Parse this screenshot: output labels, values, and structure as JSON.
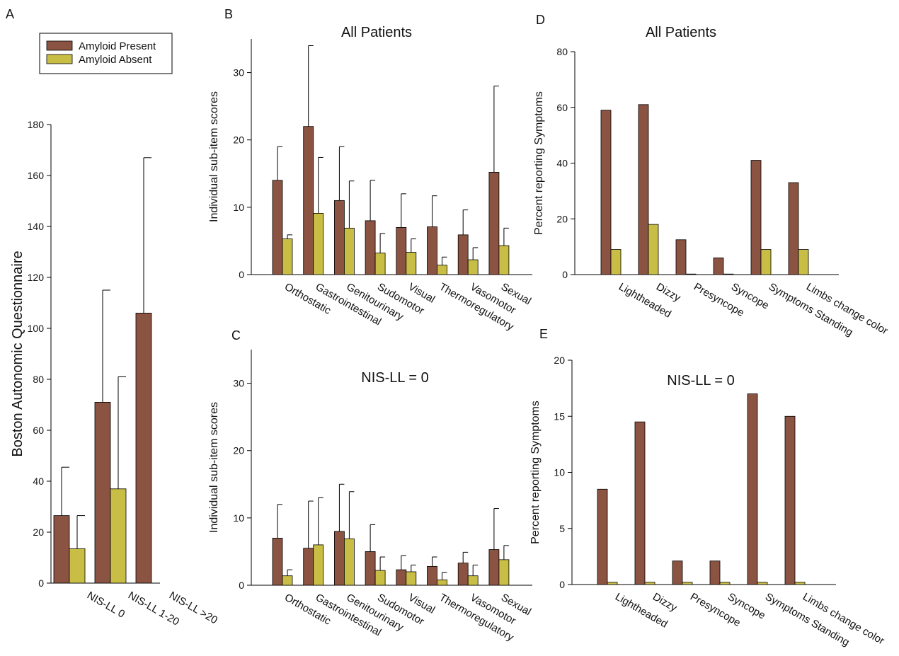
{
  "colors": {
    "present": "#8B5342",
    "absent": "#C9BE45",
    "err": "#000000"
  },
  "legend": {
    "present": "Amyloid Present",
    "absent": "Amyloid Absent"
  },
  "chart_data": [
    {
      "id": "A",
      "panel_label": "A",
      "type": "bar",
      "title": "",
      "ylabel": "Boston Autonomic Questionnaire",
      "ylim": [
        0,
        180
      ],
      "yticks": [
        0,
        20,
        40,
        60,
        80,
        100,
        120,
        140,
        160,
        180
      ],
      "categories": [
        "NIS-LL 0",
        "NIS-LL 1-20",
        "NIS-LL >20"
      ],
      "series": [
        {
          "name": "Amyloid Present",
          "values": [
            26.5,
            71,
            106
          ],
          "err_upper": [
            45.5,
            115,
            167
          ]
        },
        {
          "name": "Amyloid Absent",
          "values": [
            13.5,
            37,
            null
          ],
          "err_upper": [
            26.5,
            81,
            null
          ]
        }
      ]
    },
    {
      "id": "B",
      "panel_label": "B",
      "type": "bar",
      "title": "All Patients",
      "ylabel": "Individual sub-item scores",
      "ylim": [
        0,
        35
      ],
      "yticks": [
        0,
        10,
        20,
        30
      ],
      "categories": [
        "Orthostatic",
        "Gastrointestinal",
        "Genitourinary",
        "Sudomotor",
        "Visual",
        "Thermoregulatory",
        "Vasomotor",
        "Sexual"
      ],
      "series": [
        {
          "name": "Amyloid Present",
          "values": [
            14,
            22,
            11,
            8,
            7,
            7.1,
            5.9,
            15.2
          ],
          "err_upper": [
            19,
            34,
            19,
            14,
            12,
            11.7,
            9.6,
            28
          ]
        },
        {
          "name": "Amyloid Absent",
          "values": [
            5.3,
            9.1,
            6.9,
            3.2,
            3.3,
            1.4,
            2.2,
            4.3
          ],
          "err_upper": [
            5.9,
            17.4,
            13.9,
            6.1,
            5.3,
            2.6,
            4,
            6.9
          ]
        }
      ]
    },
    {
      "id": "C",
      "panel_label": "C",
      "type": "bar",
      "title": "NIS-LL = 0",
      "ylabel": "Individual sub-item scores",
      "ylim": [
        0,
        35
      ],
      "yticks": [
        0,
        10,
        20,
        30
      ],
      "categories": [
        "Orthostatic",
        "Gastrointestinal",
        "Genitourinary",
        "Sudomotor",
        "Visual",
        "Thermoregulatory",
        "Vasomotor",
        "Sexual"
      ],
      "series": [
        {
          "name": "Amyloid Present",
          "values": [
            7,
            5.5,
            8,
            5,
            2.3,
            2.8,
            3.3,
            5.3
          ],
          "err_upper": [
            12,
            12.5,
            15,
            9,
            4.4,
            4.2,
            4.9,
            11.4
          ]
        },
        {
          "name": "Amyloid Absent",
          "values": [
            1.4,
            6,
            6.9,
            2.2,
            2,
            0.8,
            1.4,
            3.8
          ],
          "err_upper": [
            2.3,
            13,
            13.9,
            4.2,
            3,
            1.9,
            3,
            5.9
          ]
        }
      ]
    },
    {
      "id": "D",
      "panel_label": "D",
      "type": "bar",
      "title": "All Patients",
      "ylabel": "Percent reporting Symptoms",
      "ylim": [
        0,
        80
      ],
      "yticks": [
        0,
        20,
        40,
        60,
        80
      ],
      "categories": [
        "Lightheaded",
        "Dizzy",
        "Presyncope",
        "Syncope",
        "Symptoms Standing",
        "Limbs change color"
      ],
      "series": [
        {
          "name": "Amyloid Present",
          "values": [
            59,
            61,
            12.5,
            6,
            41,
            33
          ]
        },
        {
          "name": "Amyloid Absent",
          "values": [
            9,
            18,
            0.2,
            0.2,
            9,
            9
          ]
        }
      ]
    },
    {
      "id": "E",
      "panel_label": "E",
      "type": "bar",
      "title": "NIS-LL = 0",
      "ylabel": "Percent reporting Symptoms",
      "ylim": [
        0,
        20
      ],
      "yticks": [
        0,
        5,
        10,
        15,
        20
      ],
      "categories": [
        "Lightheaded",
        "Dizzy",
        "Presyncope",
        "Syncope",
        "Symptoms Standing",
        "Limbs change color"
      ],
      "series": [
        {
          "name": "Amyloid Present",
          "values": [
            8.5,
            14.5,
            2.1,
            2.1,
            17,
            15
          ]
        },
        {
          "name": "Amyloid Absent",
          "values": [
            0.2,
            0.2,
            0.2,
            0.2,
            0.2,
            0.2
          ]
        }
      ]
    }
  ]
}
